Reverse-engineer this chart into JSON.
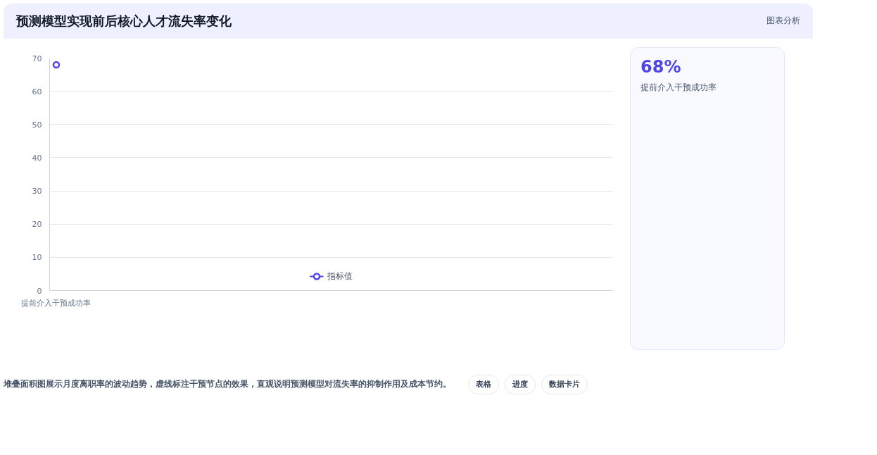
{
  "chart_data": [
    {
      "type": "line",
      "title": "预测模型实现前后核心人才流失率变化",
      "categories": [
        "提前介入干预成功率"
      ],
      "series": [
        {
          "name": "指标值",
          "color": "#4f46e5",
          "values": [
            68
          ]
        }
      ],
      "ylim": [
        0,
        70
      ],
      "yticks": [
        0,
        10,
        20,
        30,
        40,
        50,
        60,
        70
      ],
      "grid": "y",
      "legend": "bottom",
      "marker": "circle",
      "annotations": [
        "堆叠面积图展示月度离职率的波动趋势，虚线标注干预节点的效果，直观说明预测模型对流失率的抑制作用及成本节约。",
        "图表分析",
        "表格",
        "进度",
        "数据卡片"
      ]
    },
    {
      "type": "other",
      "title": "68%",
      "subtitle": "提前介入干预成功率"
    }
  ]
}
